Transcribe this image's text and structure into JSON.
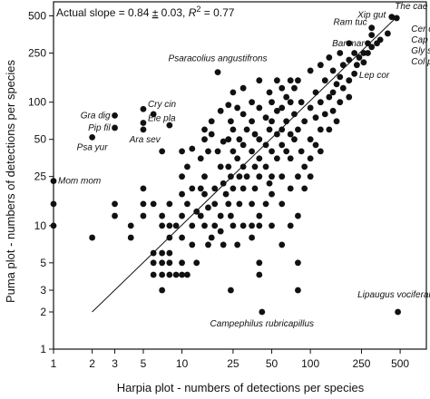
{
  "chart_data": {
    "type": "scatter",
    "xlabel": "Harpia plot - numbers of detections per species",
    "ylabel": "Puma plot - numbers of detections per species",
    "x_scale": "log",
    "y_scale": "log",
    "xlim": [
      1,
      800
    ],
    "ylim": [
      1,
      650
    ],
    "x_ticks": [
      1,
      2,
      3,
      5,
      10,
      25,
      50,
      100,
      250,
      500
    ],
    "y_ticks": [
      1,
      2,
      3,
      5,
      10,
      25,
      50,
      100,
      250,
      500
    ],
    "stats_prefix": "Actual slope = 0.84 ",
    "stats_pm": "±",
    "stats_mid": " 0.03, ",
    "stats_r": "R",
    "stats_sup": "2",
    "stats_suffix": " = 0.77",
    "fit_line": {
      "x": [
        2,
        470
      ],
      "y": [
        2,
        490
      ]
    },
    "grid": false,
    "legend": "none",
    "marker_color": "#111111",
    "points": [
      {
        "x": 1,
        "y": 23
      },
      {
        "x": 1,
        "y": 15
      },
      {
        "x": 1,
        "y": 10
      },
      {
        "x": 2,
        "y": 52
      },
      {
        "x": 2,
        "y": 8
      },
      {
        "x": 3,
        "y": 78
      },
      {
        "x": 3,
        "y": 62
      },
      {
        "x": 3,
        "y": 15
      },
      {
        "x": 3,
        "y": 12
      },
      {
        "x": 4,
        "y": 10
      },
      {
        "x": 4,
        "y": 8
      },
      {
        "x": 5,
        "y": 88
      },
      {
        "x": 5,
        "y": 68
      },
      {
        "x": 5,
        "y": 60
      },
      {
        "x": 5,
        "y": 20
      },
      {
        "x": 5,
        "y": 15
      },
      {
        "x": 5,
        "y": 12
      },
      {
        "x": 6,
        "y": 80
      },
      {
        "x": 6,
        "y": 15
      },
      {
        "x": 6,
        "y": 6
      },
      {
        "x": 6,
        "y": 5
      },
      {
        "x": 6,
        "y": 4
      },
      {
        "x": 7,
        "y": 40
      },
      {
        "x": 7,
        "y": 12
      },
      {
        "x": 7,
        "y": 10
      },
      {
        "x": 7,
        "y": 6
      },
      {
        "x": 7,
        "y": 5
      },
      {
        "x": 7,
        "y": 4
      },
      {
        "x": 7,
        "y": 3
      },
      {
        "x": 8,
        "y": 65
      },
      {
        "x": 8,
        "y": 15
      },
      {
        "x": 8,
        "y": 10
      },
      {
        "x": 8,
        "y": 8
      },
      {
        "x": 8,
        "y": 6
      },
      {
        "x": 8,
        "y": 5
      },
      {
        "x": 8,
        "y": 4
      },
      {
        "x": 9,
        "y": 10
      },
      {
        "x": 9,
        "y": 4
      },
      {
        "x": 10,
        "y": 40
      },
      {
        "x": 10,
        "y": 25
      },
      {
        "x": 10,
        "y": 18
      },
      {
        "x": 10,
        "y": 12
      },
      {
        "x": 10,
        "y": 8
      },
      {
        "x": 10,
        "y": 5
      },
      {
        "x": 10,
        "y": 4
      },
      {
        "x": 11,
        "y": 30
      },
      {
        "x": 11,
        "y": 15
      },
      {
        "x": 11,
        "y": 4
      },
      {
        "x": 12,
        "y": 42
      },
      {
        "x": 12,
        "y": 20
      },
      {
        "x": 12,
        "y": 10
      },
      {
        "x": 12,
        "y": 7
      },
      {
        "x": 13,
        "y": 13
      },
      {
        "x": 13,
        "y": 5
      },
      {
        "x": 14,
        "y": 35
      },
      {
        "x": 14,
        "y": 20
      },
      {
        "x": 14,
        "y": 12
      },
      {
        "x": 15,
        "y": 60
      },
      {
        "x": 15,
        "y": 50
      },
      {
        "x": 15,
        "y": 25
      },
      {
        "x": 15,
        "y": 18
      },
      {
        "x": 15,
        "y": 10
      },
      {
        "x": 16,
        "y": 40
      },
      {
        "x": 16,
        "y": 14
      },
      {
        "x": 16,
        "y": 7
      },
      {
        "x": 17,
        "y": 70
      },
      {
        "x": 17,
        "y": 55
      },
      {
        "x": 17,
        "y": 8
      },
      {
        "x": 18,
        "y": 20
      },
      {
        "x": 18,
        "y": 15
      },
      {
        "x": 18,
        "y": 10
      },
      {
        "x": 19,
        "y": 175
      },
      {
        "x": 19,
        "y": 40
      },
      {
        "x": 20,
        "y": 85
      },
      {
        "x": 20,
        "y": 30
      },
      {
        "x": 20,
        "y": 12
      },
      {
        "x": 20,
        "y": 9
      },
      {
        "x": 21,
        "y": 48
      },
      {
        "x": 21,
        "y": 22
      },
      {
        "x": 21,
        "y": 7
      },
      {
        "x": 22,
        "y": 18
      },
      {
        "x": 23,
        "y": 95
      },
      {
        "x": 23,
        "y": 50
      },
      {
        "x": 23,
        "y": 30
      },
      {
        "x": 23,
        "y": 15
      },
      {
        "x": 24,
        "y": 70
      },
      {
        "x": 24,
        "y": 25
      },
      {
        "x": 24,
        "y": 12
      },
      {
        "x": 24,
        "y": 3
      },
      {
        "x": 25,
        "y": 120
      },
      {
        "x": 25,
        "y": 60
      },
      {
        "x": 25,
        "y": 40
      },
      {
        "x": 25,
        "y": 20
      },
      {
        "x": 25,
        "y": 10
      },
      {
        "x": 27,
        "y": 90
      },
      {
        "x": 27,
        "y": 35
      },
      {
        "x": 27,
        "y": 7
      },
      {
        "x": 28,
        "y": 50
      },
      {
        "x": 28,
        "y": 25
      },
      {
        "x": 28,
        "y": 15
      },
      {
        "x": 30,
        "y": 130
      },
      {
        "x": 30,
        "y": 80
      },
      {
        "x": 30,
        "y": 45
      },
      {
        "x": 30,
        "y": 30
      },
      {
        "x": 30,
        "y": 20
      },
      {
        "x": 30,
        "y": 10
      },
      {
        "x": 32,
        "y": 60
      },
      {
        "x": 32,
        "y": 25
      },
      {
        "x": 35,
        "y": 100
      },
      {
        "x": 35,
        "y": 70
      },
      {
        "x": 35,
        "y": 40
      },
      {
        "x": 35,
        "y": 15
      },
      {
        "x": 35,
        "y": 10
      },
      {
        "x": 35,
        "y": 8
      },
      {
        "x": 37,
        "y": 55
      },
      {
        "x": 37,
        "y": 30
      },
      {
        "x": 37,
        "y": 20
      },
      {
        "x": 40,
        "y": 150
      },
      {
        "x": 40,
        "y": 90
      },
      {
        "x": 40,
        "y": 50
      },
      {
        "x": 40,
        "y": 35
      },
      {
        "x": 40,
        "y": 25
      },
      {
        "x": 40,
        "y": 12
      },
      {
        "x": 40,
        "y": 10
      },
      {
        "x": 40,
        "y": 5
      },
      {
        "x": 40,
        "y": 4
      },
      {
        "x": 42,
        "y": 2
      },
      {
        "x": 45,
        "y": 75
      },
      {
        "x": 45,
        "y": 45
      },
      {
        "x": 45,
        "y": 30
      },
      {
        "x": 45,
        "y": 15
      },
      {
        "x": 48,
        "y": 120
      },
      {
        "x": 48,
        "y": 60
      },
      {
        "x": 48,
        "y": 22
      },
      {
        "x": 50,
        "y": 100
      },
      {
        "x": 50,
        "y": 70
      },
      {
        "x": 50,
        "y": 40
      },
      {
        "x": 50,
        "y": 25
      },
      {
        "x": 50,
        "y": 18
      },
      {
        "x": 50,
        "y": 10
      },
      {
        "x": 55,
        "y": 150
      },
      {
        "x": 55,
        "y": 85
      },
      {
        "x": 55,
        "y": 55
      },
      {
        "x": 55,
        "y": 35
      },
      {
        "x": 60,
        "y": 130
      },
      {
        "x": 60,
        "y": 90
      },
      {
        "x": 60,
        "y": 60
      },
      {
        "x": 60,
        "y": 45
      },
      {
        "x": 60,
        "y": 25
      },
      {
        "x": 60,
        "y": 15
      },
      {
        "x": 60,
        "y": 7
      },
      {
        "x": 65,
        "y": 110
      },
      {
        "x": 65,
        "y": 70
      },
      {
        "x": 65,
        "y": 40
      },
      {
        "x": 70,
        "y": 150
      },
      {
        "x": 70,
        "y": 100
      },
      {
        "x": 70,
        "y": 55
      },
      {
        "x": 70,
        "y": 35
      },
      {
        "x": 70,
        "y": 20
      },
      {
        "x": 70,
        "y": 10
      },
      {
        "x": 75,
        "y": 130
      },
      {
        "x": 75,
        "y": 80
      },
      {
        "x": 75,
        "y": 50
      },
      {
        "x": 80,
        "y": 150
      },
      {
        "x": 80,
        "y": 60
      },
      {
        "x": 80,
        "y": 25
      },
      {
        "x": 80,
        "y": 12
      },
      {
        "x": 80,
        "y": 5
      },
      {
        "x": 80,
        "y": 3
      },
      {
        "x": 85,
        "y": 100
      },
      {
        "x": 85,
        "y": 40
      },
      {
        "x": 90,
        "y": 70
      },
      {
        "x": 90,
        "y": 30
      },
      {
        "x": 90,
        "y": 20
      },
      {
        "x": 100,
        "y": 180
      },
      {
        "x": 100,
        "y": 90
      },
      {
        "x": 100,
        "y": 50
      },
      {
        "x": 100,
        "y": 35
      },
      {
        "x": 100,
        "y": 25
      },
      {
        "x": 110,
        "y": 120
      },
      {
        "x": 110,
        "y": 75
      },
      {
        "x": 110,
        "y": 45
      },
      {
        "x": 120,
        "y": 200
      },
      {
        "x": 120,
        "y": 100
      },
      {
        "x": 120,
        "y": 60
      },
      {
        "x": 120,
        "y": 40
      },
      {
        "x": 130,
        "y": 150
      },
      {
        "x": 130,
        "y": 80
      },
      {
        "x": 140,
        "y": 230
      },
      {
        "x": 140,
        "y": 110
      },
      {
        "x": 140,
        "y": 60
      },
      {
        "x": 150,
        "y": 180
      },
      {
        "x": 150,
        "y": 120
      },
      {
        "x": 150,
        "y": 85
      },
      {
        "x": 160,
        "y": 140
      },
      {
        "x": 160,
        "y": 70
      },
      {
        "x": 170,
        "y": 250
      },
      {
        "x": 170,
        "y": 160
      },
      {
        "x": 170,
        "y": 100
      },
      {
        "x": 180,
        "y": 200
      },
      {
        "x": 180,
        "y": 130
      },
      {
        "x": 200,
        "y": 300
      },
      {
        "x": 200,
        "y": 220
      },
      {
        "x": 200,
        "y": 150
      },
      {
        "x": 200,
        "y": 110
      },
      {
        "x": 220,
        "y": 250
      },
      {
        "x": 220,
        "y": 170
      },
      {
        "x": 230,
        "y": 200
      },
      {
        "x": 240,
        "y": 230
      },
      {
        "x": 260,
        "y": 250
      },
      {
        "x": 260,
        "y": 210
      },
      {
        "x": 280,
        "y": 300
      },
      {
        "x": 280,
        "y": 250
      },
      {
        "x": 300,
        "y": 350
      },
      {
        "x": 300,
        "y": 400
      },
      {
        "x": 300,
        "y": 280
      },
      {
        "x": 330,
        "y": 300
      },
      {
        "x": 350,
        "y": 320
      },
      {
        "x": 400,
        "y": 360
      },
      {
        "x": 430,
        "y": 490
      },
      {
        "x": 470,
        "y": 480
      },
      {
        "x": 480,
        "y": 2
      }
    ],
    "annotations": [
      {
        "text": "Psaracolius angustifrons",
        "x": 19,
        "y": 175,
        "ha": "middle",
        "dx": 0,
        "dy": -12
      },
      {
        "text": "Cry cin",
        "x": 5,
        "y": 88,
        "ha": "start",
        "dx": 5,
        "dy": -2
      },
      {
        "text": "Ele pla",
        "x": 5,
        "y": 68,
        "ha": "start",
        "dx": 5,
        "dy": -2
      },
      {
        "text": "Ara sev",
        "x": 7,
        "y": 40,
        "ha": "end",
        "dx": -2,
        "dy": -10
      },
      {
        "text": "Gra dig",
        "x": 3,
        "y": 78,
        "ha": "end",
        "dx": -5,
        "dy": 3
      },
      {
        "text": "Pip fil",
        "x": 3,
        "y": 62,
        "ha": "end",
        "dx": -5,
        "dy": 3
      },
      {
        "text": "Psa yur",
        "x": 2,
        "y": 52,
        "ha": "middle",
        "dx": 0,
        "dy": 14
      },
      {
        "text": "Mom mom",
        "x": 1,
        "y": 23,
        "ha": "start",
        "dx": 5,
        "dy": 3
      },
      {
        "text": "Campephilus rubricapillus",
        "x": 42,
        "y": 2,
        "ha": "middle",
        "dx": 0,
        "dy": 16
      },
      {
        "text": "Lipaugus vociferans",
        "x": 480,
        "y": 2,
        "ha": "middle",
        "dx": 0,
        "dy": -16
      },
      {
        "text": "Xip gut",
        "x": 300,
        "y": 400,
        "ha": "middle",
        "dx": 0,
        "dy": -11
      },
      {
        "text": "Ram tuc",
        "x": 300,
        "y": 350,
        "ha": "end",
        "dx": -5,
        "dy": -11
      },
      {
        "text": "Bar mar",
        "x": 300,
        "y": 280,
        "ha": "end",
        "dx": -8,
        "dy": -1
      },
      {
        "text": "Lep cor",
        "x": 260,
        "y": 210,
        "ha": "start",
        "dx": -5,
        "dy": 17
      },
      {
        "text": "The cae",
        "x": 470,
        "y": 480,
        "ha": "start",
        "dx": -2,
        "dy": -10
      },
      {
        "text": "Cer cin",
        "x": 470,
        "y": 480,
        "ha": "start",
        "dx": 16,
        "dy": 15
      },
      {
        "text": "Cap aur",
        "x": 470,
        "y": 480,
        "ha": "start",
        "dx": 16,
        "dy": 27
      },
      {
        "text": "Gly spi",
        "x": 470,
        "y": 480,
        "ha": "start",
        "dx": 16,
        "dy": 39
      },
      {
        "text": "Col plu",
        "x": 470,
        "y": 480,
        "ha": "start",
        "dx": 16,
        "dy": 51
      }
    ]
  }
}
